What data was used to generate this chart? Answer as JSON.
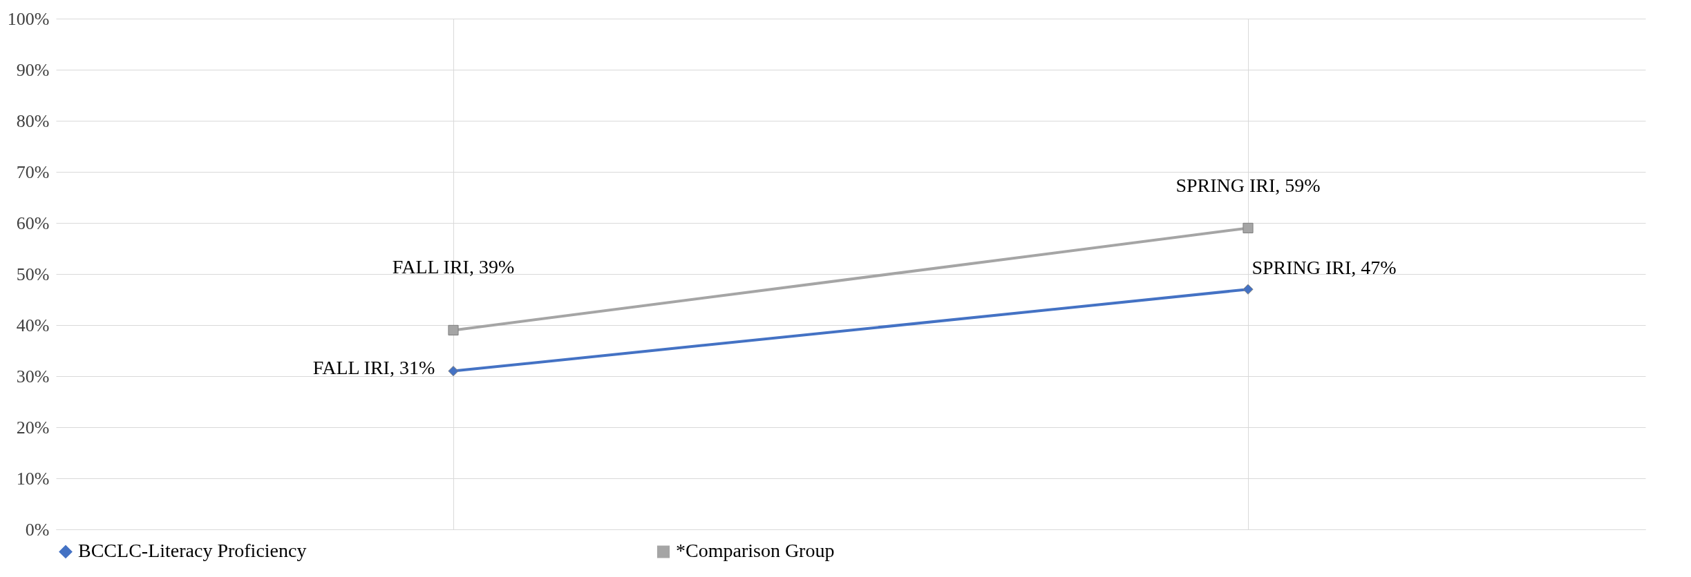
{
  "chart_data": {
    "type": "line",
    "categories": [
      null,
      null
    ],
    "series": [
      {
        "name": "BCCLC-Literacy Proficiency",
        "color": "#4472c4",
        "marker": "diamond",
        "values": [
          31,
          47
        ],
        "value_labels": [
          "FALL IRI, 31%",
          "SPRING IRI, 47%"
        ]
      },
      {
        "name": "*Comparison Group",
        "color": "#a5a5a5",
        "marker": "square",
        "values": [
          39,
          59
        ],
        "value_labels": [
          "FALL IRI, 39%",
          "SPRING IRI, 59%"
        ]
      }
    ],
    "ylim": [
      0,
      100
    ],
    "yticks": [
      {
        "value": 0,
        "label": "0%"
      },
      {
        "value": 10,
        "label": "10%"
      },
      {
        "value": 20,
        "label": "20%"
      },
      {
        "value": 30,
        "label": "30%"
      },
      {
        "value": 40,
        "label": "40%"
      },
      {
        "value": 50,
        "label": "50%"
      },
      {
        "value": 60,
        "label": "60%"
      },
      {
        "value": 70,
        "label": "70%"
      },
      {
        "value": 80,
        "label": "80%"
      },
      {
        "value": 90,
        "label": "90%"
      },
      {
        "value": 100,
        "label": "100%"
      }
    ],
    "grid": true,
    "legend": "bottom",
    "tick_labels": "y"
  }
}
